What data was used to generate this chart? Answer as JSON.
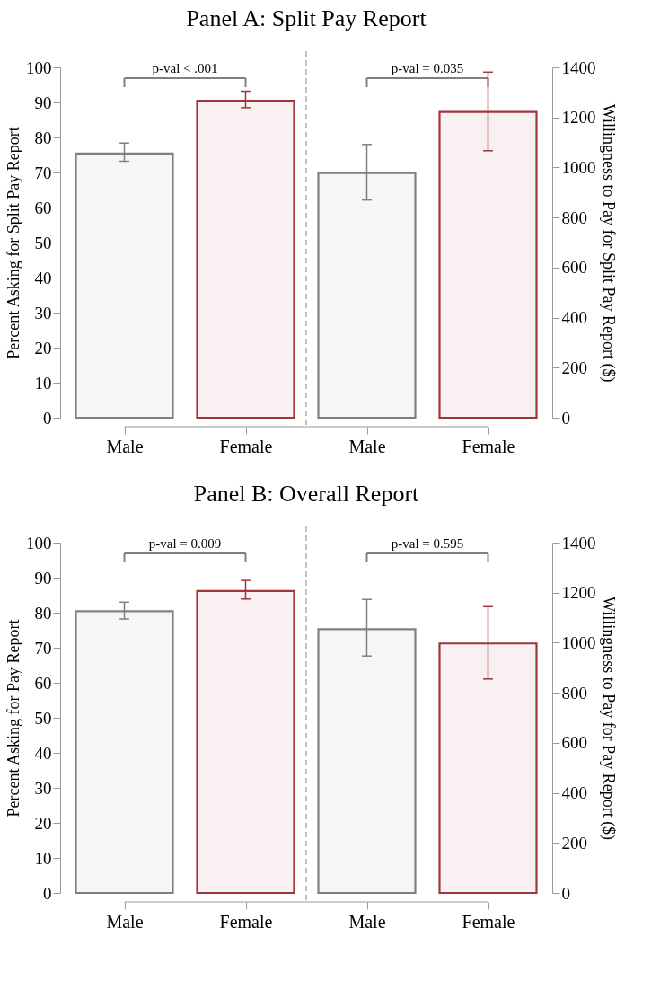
{
  "chart_data": [
    {
      "type": "bar",
      "title": "Panel A: Split Pay Report",
      "ylabel": "Percent Asking for Split Pay Report",
      "y2label": "Willingness to Pay for Split Pay Report ($)",
      "categories": [
        "Male",
        "Female",
        "Male",
        "Female"
      ],
      "series": [
        {
          "axis": "y",
          "colors": [
            "#808080",
            "#a0353a",
            "#808080",
            "#a0353a"
          ],
          "values": [
            75.4,
            90.5,
            null,
            null
          ],
          "errors": [
            [
              73.2,
              78.4
            ],
            [
              88.5,
              93.2
            ],
            null,
            null
          ]
        },
        {
          "axis": "y2",
          "colors": [
            "#808080",
            "#a0353a",
            "#808080",
            "#a0353a"
          ],
          "values": [
            null,
            null,
            978,
            1222
          ],
          "errors": [
            null,
            null,
            [
              870,
              1092
            ],
            [
              1067,
              1381
            ]
          ]
        }
      ],
      "ylim": [
        0,
        100
      ],
      "yticks": [
        0,
        10,
        20,
        30,
        40,
        50,
        60,
        70,
        80,
        90,
        100
      ],
      "y2lim": [
        0,
        1400
      ],
      "y2ticks": [
        0,
        200,
        400,
        600,
        800,
        1000,
        1200,
        1400
      ],
      "annotations": [
        "p-val < .001",
        "p-val = 0.035"
      ],
      "grid": false
    },
    {
      "type": "bar",
      "title": "Panel B: Overall Report",
      "ylabel": "Percent Asking for Pay Report",
      "y2label": "Willingness to Pay for Pay Report ($)",
      "categories": [
        "Male",
        "Female",
        "Male",
        "Female"
      ],
      "series": [
        {
          "axis": "y",
          "colors": [
            "#808080",
            "#a0353a",
            "#808080",
            "#a0353a"
          ],
          "values": [
            80.4,
            86.2,
            null,
            null
          ],
          "errors": [
            [
              78.2,
              83.0
            ],
            [
              83.9,
              89.2
            ],
            null,
            null
          ]
        },
        {
          "axis": "y2",
          "colors": [
            "#808080",
            "#a0353a",
            "#808080",
            "#a0353a"
          ],
          "values": [
            null,
            null,
            1054,
            997
          ],
          "errors": [
            null,
            null,
            [
              947,
              1173
            ],
            [
              855,
              1144
            ]
          ]
        }
      ],
      "ylim": [
        0,
        100
      ],
      "yticks": [
        0,
        10,
        20,
        30,
        40,
        50,
        60,
        70,
        80,
        90,
        100
      ],
      "y2lim": [
        0,
        1400
      ],
      "y2ticks": [
        0,
        200,
        400,
        600,
        800,
        1000,
        1200,
        1400
      ],
      "annotations": [
        "p-val = 0.009",
        "p-val = 0.595"
      ],
      "grid": false
    }
  ]
}
